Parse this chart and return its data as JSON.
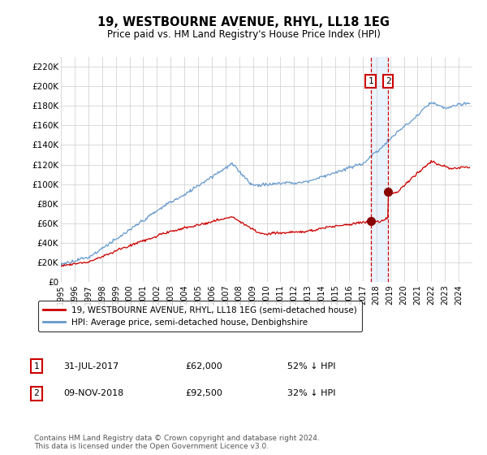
{
  "title": "19, WESTBOURNE AVENUE, RHYL, LL18 1EG",
  "subtitle": "Price paid vs. HM Land Registry's House Price Index (HPI)",
  "ylabel_ticks": [
    "£0",
    "£20K",
    "£40K",
    "£60K",
    "£80K",
    "£100K",
    "£120K",
    "£140K",
    "£160K",
    "£180K",
    "£200K",
    "£220K"
  ],
  "ytick_values": [
    0,
    20000,
    40000,
    60000,
    80000,
    100000,
    120000,
    140000,
    160000,
    180000,
    200000,
    220000
  ],
  "ylim": [
    0,
    230000
  ],
  "xlim_start": 1995,
  "xlim_end": 2025,
  "xticks": [
    1995,
    1996,
    1997,
    1998,
    1999,
    2000,
    2001,
    2002,
    2003,
    2004,
    2005,
    2006,
    2007,
    2008,
    2009,
    2010,
    2011,
    2012,
    2013,
    2014,
    2015,
    2016,
    2017,
    2018,
    2019,
    2020,
    2021,
    2022,
    2023,
    2024
  ],
  "sale1_date": 2017.58,
  "sale1_price": 62000,
  "sale1_label": "1",
  "sale1_date_str": "31-JUL-2017",
  "sale1_price_str": "£62,000",
  "sale1_hpi_str": "52% ↓ HPI",
  "sale2_date": 2018.86,
  "sale2_price": 92500,
  "sale2_label": "2",
  "sale2_date_str": "09-NOV-2018",
  "sale2_price_str": "£92,500",
  "sale2_hpi_str": "32% ↓ HPI",
  "line1_color": "#cc0000",
  "line2_color": "#6699cc",
  "marker_color": "#880000",
  "legend1_label": "19, WESTBOURNE AVENUE, RHYL, LL18 1EG (semi-detached house)",
  "legend2_label": "HPI: Average price, semi-detached house, Denbighshire",
  "footer": "Contains HM Land Registry data © Crown copyright and database right 2024.\nThis data is licensed under the Open Government Licence v3.0.",
  "bg_color": "#ffffff",
  "grid_color": "#cccccc",
  "highlight_fill": "#ddeeff"
}
